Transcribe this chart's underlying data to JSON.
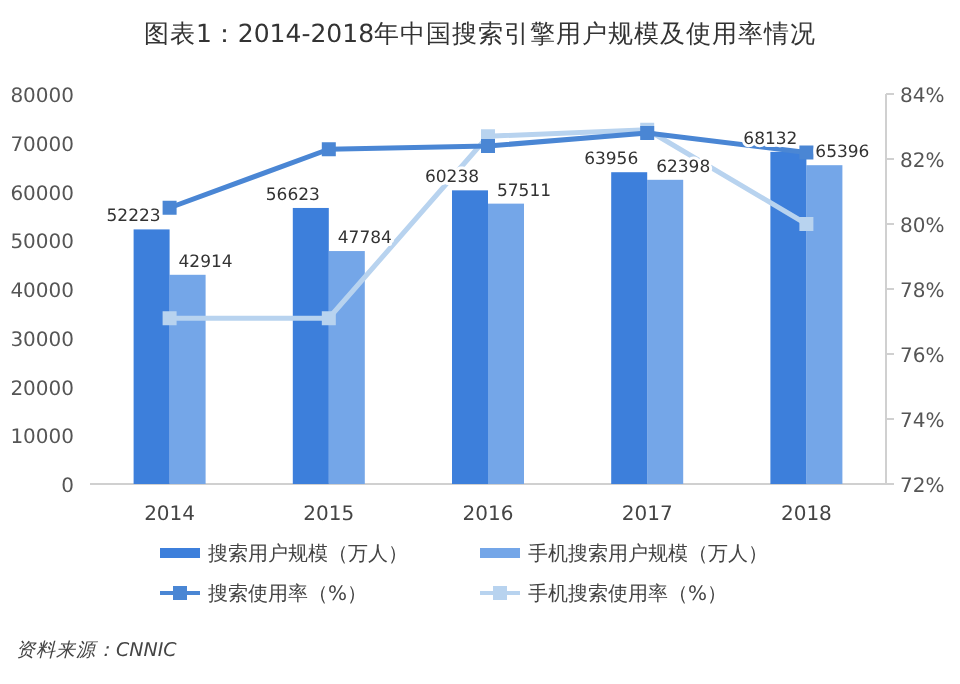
{
  "chart_data": {
    "type": "bar",
    "title": "图表1：2014-2018年中国搜索引擎用户规模及使用率情况",
    "categories": [
      "2014",
      "2015",
      "2016",
      "2017",
      "2018"
    ],
    "series": [
      {
        "name": "搜索用户规模（万人）",
        "color": "#3d7fdb",
        "values": [
          52223,
          56623,
          60238,
          63956,
          68132
        ],
        "value_labels": [
          "52223",
          "56623",
          "60238",
          "63956",
          "68132"
        ]
      },
      {
        "name": "手机搜索用户规模（万人）",
        "color": "#74a6e8",
        "values": [
          42914,
          47784,
          57511,
          62398,
          65396
        ],
        "value_labels": [
          "42914",
          "47784",
          "57511",
          "62398",
          "65396"
        ]
      },
      {
        "name": "搜索使用率（%）",
        "type": "line",
        "axis": "y2",
        "marker": "square",
        "color": "#4a86d4",
        "values": [
          80.5,
          82.3,
          82.4,
          82.8,
          82.2
        ]
      },
      {
        "name": "手机搜索使用率（%）",
        "type": "line",
        "axis": "y2",
        "marker": "square",
        "color": "#b8d3ef",
        "values": [
          77.1,
          77.1,
          82.7,
          82.9,
          80.0
        ]
      }
    ],
    "ylim": [
      0,
      80000
    ],
    "yticks": [
      0,
      10000,
      20000,
      30000,
      40000,
      50000,
      60000,
      70000,
      80000
    ],
    "y2lim": [
      72,
      84
    ],
    "y2ticks": [
      {
        "value": 72,
        "label": "72%"
      },
      {
        "value": 74,
        "label": "74%"
      },
      {
        "value": 76,
        "label": "76%"
      },
      {
        "value": 78,
        "label": "78%"
      },
      {
        "value": 80,
        "label": "80%"
      },
      {
        "value": 82,
        "label": "82%"
      },
      {
        "value": 84,
        "label": "84%"
      }
    ],
    "legend": "bottom",
    "annotations": [
      "资料来源：CNNIC"
    ]
  }
}
